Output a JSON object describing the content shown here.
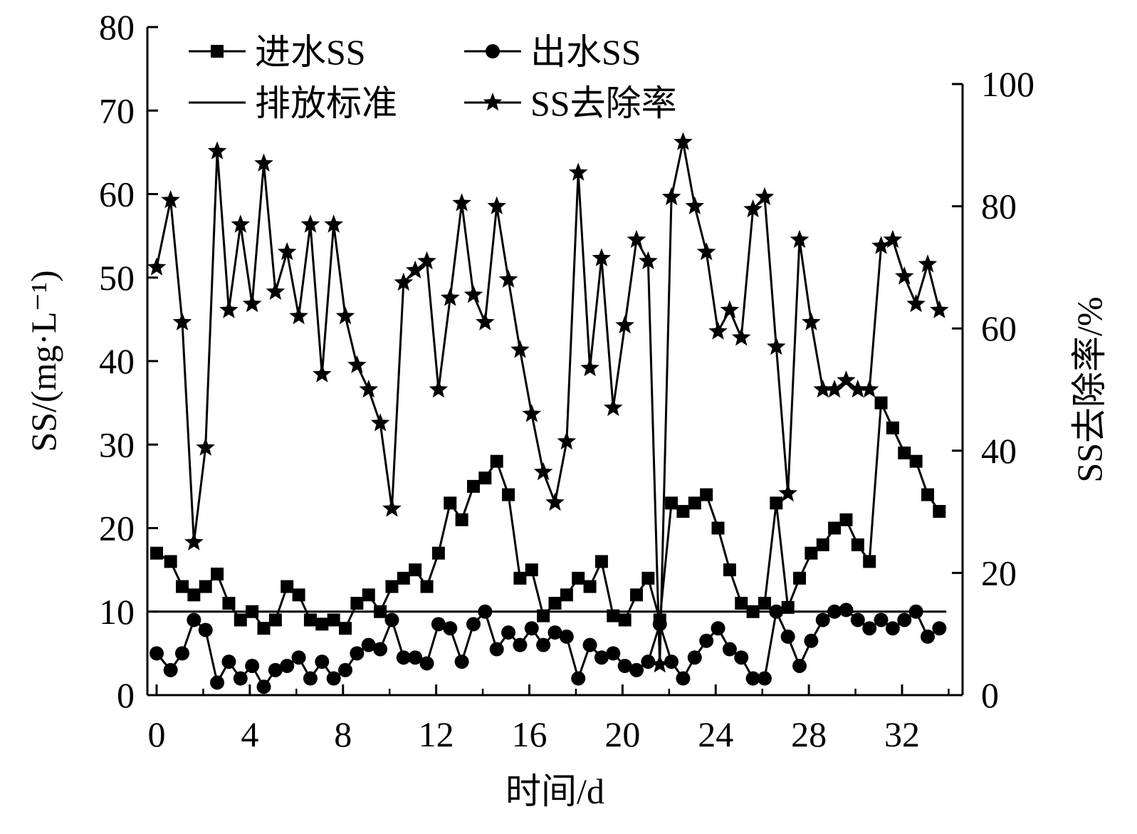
{
  "chart_data": {
    "type": "line",
    "xlabel": "时间/d",
    "ylabel": "SS/(mg·L⁻¹)",
    "y2label": "SS去除率/%",
    "xlim": [
      0,
      34
    ],
    "ylim": [
      0,
      80
    ],
    "y2lim": [
      0,
      100
    ],
    "x_ticks": [
      "0",
      "4",
      "8",
      "12",
      "16",
      "20",
      "24",
      "28",
      "32"
    ],
    "y_ticks": [
      "0",
      "10",
      "20",
      "30",
      "40",
      "50",
      "60",
      "70",
      "80"
    ],
    "y2_ticks": [
      "0",
      "20",
      "40",
      "60",
      "80",
      "100"
    ],
    "legend_position": "top-left",
    "series": [
      {
        "name": "进水SS",
        "axis": "left",
        "marker": "square",
        "color": "#000000",
        "x": [
          0,
          0.6,
          1.1,
          1.6,
          2.1,
          2.6,
          3.1,
          3.6,
          4.1,
          4.6,
          5.1,
          5.6,
          6.1,
          6.6,
          7.1,
          7.6,
          8.1,
          8.6,
          9.1,
          9.6,
          10.1,
          10.6,
          11.1,
          11.6,
          12.1,
          12.6,
          13.1,
          13.6,
          14.1,
          14.6,
          15.1,
          15.6,
          16.1,
          16.6,
          17.1,
          17.6,
          18.1,
          18.6,
          19.1,
          19.6,
          20.1,
          20.6,
          21.1,
          21.6,
          22.1,
          22.6,
          23.1,
          23.6,
          24.1,
          24.6,
          25.1,
          25.6,
          26.1,
          26.6,
          27.1,
          27.6,
          28.1,
          28.6,
          29.1,
          29.6,
          30.1,
          30.6,
          31.1,
          31.6,
          32.1,
          32.6,
          33.1,
          33.6
        ],
        "values": [
          17,
          16,
          13,
          12,
          13,
          14.5,
          11,
          9,
          10,
          8,
          9,
          13,
          12,
          9,
          8.5,
          9,
          8,
          11,
          12,
          10,
          13,
          14,
          15,
          13,
          17,
          23,
          21,
          25,
          26,
          28,
          24,
          14,
          15,
          9.5,
          11,
          12,
          14,
          13,
          16,
          9.5,
          9,
          12,
          14,
          9,
          23,
          22,
          23,
          24,
          20,
          15,
          11,
          10,
          11,
          23,
          10.5,
          14,
          17,
          18,
          20,
          21,
          18,
          16,
          35,
          32,
          29,
          28,
          24,
          22
        ]
      },
      {
        "name": "出水SS",
        "axis": "left",
        "marker": "circle",
        "color": "#000000",
        "x": [
          0,
          0.6,
          1.1,
          1.6,
          2.1,
          2.6,
          3.1,
          3.6,
          4.1,
          4.6,
          5.1,
          5.6,
          6.1,
          6.6,
          7.1,
          7.6,
          8.1,
          8.6,
          9.1,
          9.6,
          10.1,
          10.6,
          11.1,
          11.6,
          12.1,
          12.6,
          13.1,
          13.6,
          14.1,
          14.6,
          15.1,
          15.6,
          16.1,
          16.6,
          17.1,
          17.6,
          18.1,
          18.6,
          19.1,
          19.6,
          20.1,
          20.6,
          21.1,
          21.6,
          22.1,
          22.6,
          23.1,
          23.6,
          24.1,
          24.6,
          25.1,
          25.6,
          26.1,
          26.6,
          27.1,
          27.6,
          28.1,
          28.6,
          29.1,
          29.6,
          30.1,
          30.6,
          31.1,
          31.6,
          32.1,
          32.6,
          33.1,
          33.6
        ],
        "values": [
          5,
          3,
          5,
          9,
          7.8,
          1.5,
          4,
          2,
          3.5,
          1,
          3,
          3.5,
          4.5,
          2,
          4,
          2,
          3,
          5,
          6,
          5.5,
          9,
          4.5,
          4.5,
          3.8,
          8.5,
          8,
          4,
          8.5,
          10,
          5.5,
          7.5,
          6,
          8,
          6,
          7.5,
          7,
          2,
          6,
          4.5,
          5,
          3.5,
          3,
          4,
          8.5,
          4,
          2,
          4.5,
          6.5,
          8,
          5.5,
          4.5,
          2,
          2,
          10,
          7,
          3.5,
          6.5,
          9,
          10,
          10.2,
          9,
          8,
          9,
          8,
          9,
          10,
          7,
          8
        ]
      },
      {
        "name": "排放标准",
        "axis": "left",
        "marker": "none",
        "color": "#000000",
        "x": [
          0,
          34
        ],
        "values": [
          10,
          10
        ]
      },
      {
        "name": "SS去除率",
        "axis": "right",
        "marker": "star",
        "color": "#000000",
        "x": [
          0,
          0.6,
          1.1,
          1.6,
          2.1,
          2.6,
          3.1,
          3.6,
          4.1,
          4.6,
          5.1,
          5.6,
          6.1,
          6.6,
          7.1,
          7.6,
          8.1,
          8.6,
          9.1,
          9.6,
          10.1,
          10.6,
          11.1,
          11.6,
          12.1,
          12.6,
          13.1,
          13.6,
          14.1,
          14.6,
          15.1,
          15.6,
          16.1,
          16.6,
          17.1,
          17.6,
          18.1,
          18.6,
          19.1,
          19.6,
          20.1,
          20.6,
          21.1,
          21.6,
          22.1,
          22.6,
          23.1,
          23.6,
          24.1,
          24.6,
          25.1,
          25.6,
          26.1,
          26.6,
          27.1,
          27.6,
          28.1,
          28.6,
          29.1,
          29.6,
          30.1,
          30.6,
          31.1,
          31.6,
          32.1,
          32.6,
          33.1,
          33.6
        ],
        "values": [
          70,
          81,
          61,
          25,
          40.5,
          89,
          63,
          77,
          64,
          87,
          66,
          72.5,
          62,
          77,
          52.5,
          77,
          62,
          54,
          50,
          44.5,
          30.5,
          67.5,
          69.5,
          71,
          50,
          65,
          80.5,
          65.5,
          61,
          80,
          68,
          56.5,
          46,
          36.5,
          31.5,
          41.5,
          85.5,
          53.5,
          71.5,
          47,
          60.5,
          74.5,
          71,
          5,
          81.5,
          90.5,
          80,
          72.5,
          59.5,
          63,
          58.5,
          79.5,
          81.5,
          57,
          33,
          74.5,
          61,
          50,
          50,
          51.5,
          50,
          50,
          73.5,
          74.5,
          68.5,
          64,
          70.5,
          63
        ]
      }
    ]
  }
}
